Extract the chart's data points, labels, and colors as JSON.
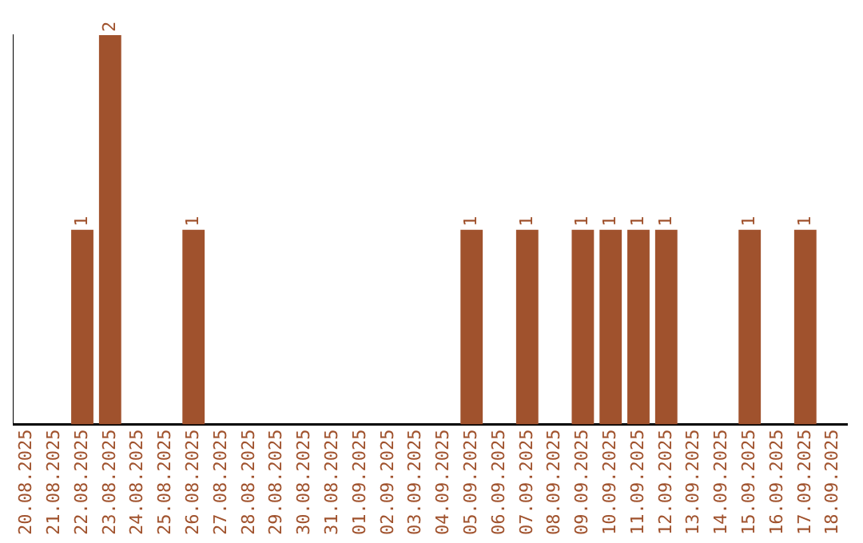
{
  "chart_data": {
    "type": "bar",
    "categories": [
      "20.08.2025",
      "21.08.2025",
      "22.08.2025",
      "23.08.2025",
      "24.08.2025",
      "25.08.2025",
      "26.08.2025",
      "27.08.2025",
      "28.08.2025",
      "29.08.2025",
      "30.08.2025",
      "31.08.2025",
      "01.09.2025",
      "02.09.2025",
      "03.09.2025",
      "04.09.2025",
      "05.09.2025",
      "06.09.2025",
      "07.09.2025",
      "08.09.2025",
      "09.09.2025",
      "10.09.2025",
      "11.09.2025",
      "12.09.2025",
      "13.09.2025",
      "14.09.2025",
      "15.09.2025",
      "16.09.2025",
      "17.09.2025",
      "18.09.2025"
    ],
    "values": [
      0,
      0,
      1,
      2,
      0,
      0,
      1,
      0,
      0,
      0,
      0,
      0,
      0,
      0,
      0,
      0,
      1,
      0,
      1,
      0,
      1,
      1,
      1,
      1,
      0,
      0,
      1,
      0,
      1,
      0
    ],
    "value_labels": [
      null,
      null,
      "1",
      "2",
      null,
      null,
      "1",
      null,
      null,
      null,
      null,
      null,
      null,
      null,
      null,
      null,
      "1",
      null,
      "1",
      null,
      "1",
      "1",
      "1",
      "1",
      null,
      null,
      "1",
      null,
      "1",
      null
    ],
    "color": "#a0522d",
    "grid": false,
    "legend": false,
    "tick_labels": "x"
  }
}
